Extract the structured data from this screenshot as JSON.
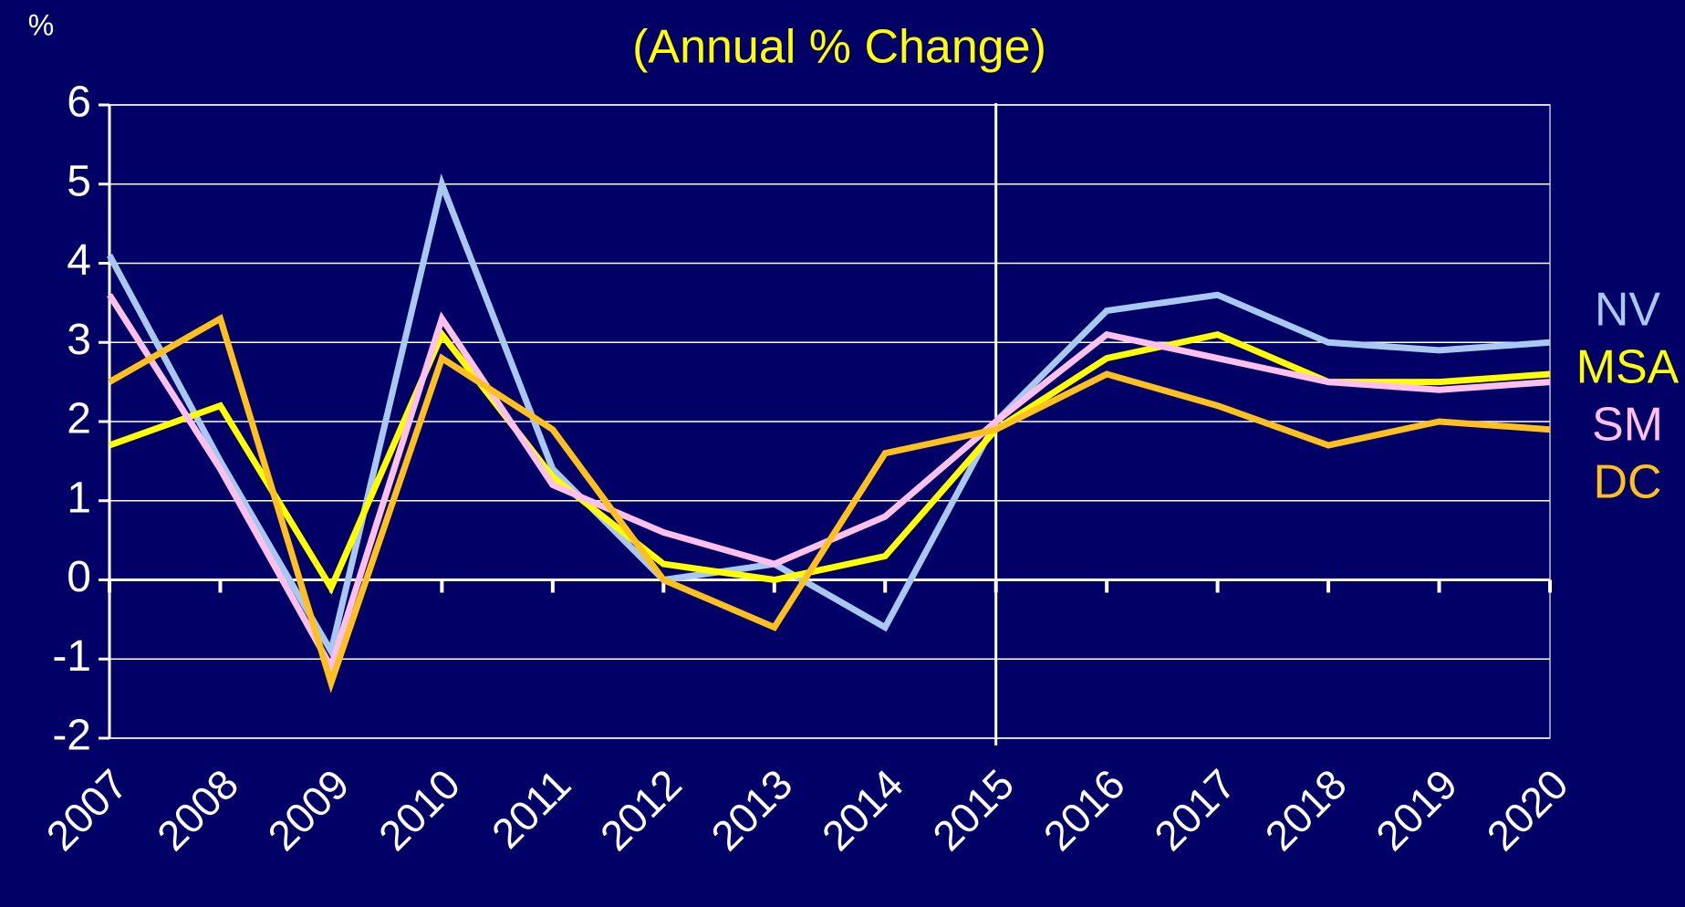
{
  "chart_data": {
    "type": "line",
    "subtitle": "(Annual % Change)",
    "y_label": "%",
    "categories": [
      "2007",
      "2008",
      "2009",
      "2010",
      "2011",
      "2012",
      "2013",
      "2014",
      "2015",
      "2016",
      "2017",
      "2018",
      "2019",
      "2020"
    ],
    "series": [
      {
        "name": "NV",
        "color": "#a8c8f0",
        "values": [
          4.1,
          1.5,
          -0.9,
          5.0,
          1.4,
          0.0,
          0.2,
          -0.6,
          2.0,
          3.4,
          3.6,
          3.0,
          2.9,
          3.0
        ]
      },
      {
        "name": "MSA",
        "color": "#ffff00",
        "values": [
          1.7,
          2.2,
          -0.1,
          3.1,
          1.3,
          0.2,
          0.0,
          0.3,
          1.9,
          2.8,
          3.1,
          2.5,
          2.5,
          2.6
        ]
      },
      {
        "name": "SM",
        "color": "#ffc0ec",
        "values": [
          3.6,
          1.4,
          -1.1,
          3.3,
          1.2,
          0.6,
          0.2,
          0.8,
          2.0,
          3.1,
          2.8,
          2.5,
          2.4,
          2.5
        ]
      },
      {
        "name": "DC",
        "color": "#ffc020",
        "values": [
          2.5,
          3.3,
          -1.3,
          2.8,
          1.9,
          0.0,
          -0.6,
          1.6,
          1.9,
          2.6,
          2.2,
          1.7,
          2.0,
          1.9
        ]
      }
    ],
    "vline": "2015",
    "ylim": [
      -2,
      6
    ],
    "yticks": [
      -2,
      -1,
      0,
      1,
      2,
      3,
      4,
      5,
      6
    ],
    "grid": true
  }
}
